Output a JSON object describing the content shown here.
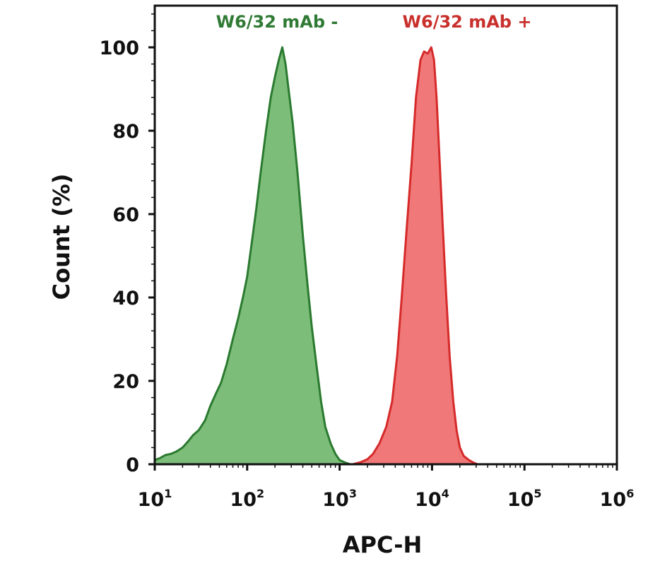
{
  "chart_data": {
    "type": "area",
    "xlabel": "APC-H",
    "ylabel": "Count (%)",
    "x_scale": "log",
    "xlim": [
      10,
      1000000
    ],
    "ylim": [
      0,
      110
    ],
    "x_ticks": [
      {
        "base": "10",
        "exp": "1",
        "value": 10
      },
      {
        "base": "10",
        "exp": "2",
        "value": 100
      },
      {
        "base": "10",
        "exp": "3",
        "value": 1000
      },
      {
        "base": "10",
        "exp": "4",
        "value": 10000
      },
      {
        "base": "10",
        "exp": "5",
        "value": 100000
      },
      {
        "base": "10",
        "exp": "6",
        "value": 1000000
      }
    ],
    "y_ticks": [
      0,
      20,
      40,
      60,
      80,
      100
    ],
    "grid": false,
    "series": [
      {
        "name": "W6/32 mAb -",
        "fill": "#7dbd7a",
        "stroke": "#2a7a2f",
        "label_color": "#2f7a34",
        "points": [
          [
            10,
            1
          ],
          [
            11.5,
            1.5
          ],
          [
            13,
            2.2
          ],
          [
            15,
            2.5
          ],
          [
            17,
            3
          ],
          [
            20,
            4
          ],
          [
            23,
            5.5
          ],
          [
            26,
            7
          ],
          [
            30,
            8.2
          ],
          [
            35,
            10.5
          ],
          [
            40,
            14
          ],
          [
            46,
            17
          ],
          [
            52,
            19.5
          ],
          [
            60,
            24
          ],
          [
            70,
            30
          ],
          [
            80,
            35
          ],
          [
            90,
            40
          ],
          [
            100,
            45
          ],
          [
            112,
            53
          ],
          [
            125,
            61
          ],
          [
            140,
            70
          ],
          [
            160,
            80
          ],
          [
            180,
            88
          ],
          [
            200,
            93
          ],
          [
            220,
            97
          ],
          [
            240,
            100
          ],
          [
            260,
            96
          ],
          [
            280,
            90
          ],
          [
            310,
            82
          ],
          [
            350,
            70
          ],
          [
            400,
            55
          ],
          [
            450,
            43
          ],
          [
            500,
            33
          ],
          [
            560,
            24
          ],
          [
            630,
            15
          ],
          [
            700,
            9
          ],
          [
            800,
            5
          ],
          [
            900,
            2.5
          ],
          [
            1000,
            1
          ],
          [
            1150,
            0.4
          ],
          [
            1300,
            0
          ]
        ]
      },
      {
        "name": "W6/32 mAb +",
        "fill": "#f07878",
        "stroke": "#d62a2a",
        "label_color": "#c9302c",
        "points": [
          [
            1400,
            0
          ],
          [
            1700,
            0.5
          ],
          [
            2000,
            1.2
          ],
          [
            2300,
            2.5
          ],
          [
            2700,
            5
          ],
          [
            3200,
            9
          ],
          [
            3700,
            15
          ],
          [
            4200,
            26
          ],
          [
            4700,
            40
          ],
          [
            5300,
            56
          ],
          [
            6000,
            72
          ],
          [
            6700,
            88
          ],
          [
            7500,
            97
          ],
          [
            8200,
            99
          ],
          [
            9000,
            98.5
          ],
          [
            9800,
            100
          ],
          [
            10500,
            97
          ],
          [
            11200,
            88
          ],
          [
            12000,
            74
          ],
          [
            13000,
            58
          ],
          [
            14200,
            41
          ],
          [
            15500,
            26
          ],
          [
            17000,
            15
          ],
          [
            18500,
            8
          ],
          [
            20000,
            4
          ],
          [
            22000,
            2
          ],
          [
            25000,
            1
          ],
          [
            28000,
            0.4
          ],
          [
            31000,
            0
          ]
        ]
      }
    ]
  }
}
